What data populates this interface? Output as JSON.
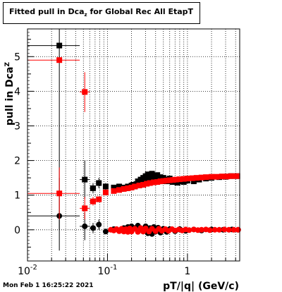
{
  "title": {
    "prefix": "Fitted pull in Dca",
    "subscript": "z",
    "suffix": " for Global Rec All EtapT"
  },
  "footer": "Mon Feb  1 16:25:22 2021",
  "colors": {
    "series_black": "#000000",
    "series_red": "#ff0000",
    "grid": "#000000",
    "frame": "#000000"
  },
  "chart_data": {
    "type": "scatter",
    "xscale": "log",
    "xlim": [
      0.01,
      4.5
    ],
    "ylim": [
      -0.9,
      5.8
    ],
    "grid": true,
    "xlabel": "pT/|q| (GeV/c)",
    "ylabel": {
      "prefix": "pull in Dca",
      "subscript": "Z"
    },
    "xticks": [
      {
        "value": 0.01,
        "base": "10",
        "exp": "-2"
      },
      {
        "value": 0.1,
        "base": "10",
        "exp": "-1"
      },
      {
        "value": 1,
        "base": "1",
        "exp": ""
      }
    ],
    "yticks": [
      "0",
      "1",
      "2",
      "3",
      "4",
      "5"
    ],
    "series": [
      {
        "color": "#000000",
        "points": [
          {
            "x": 0.025,
            "y": 5.32,
            "xlo": 0.01,
            "xhi": 0.045,
            "ylo": 0.0,
            "yhi": 5.8
          },
          {
            "x": 0.025,
            "y": 0.4,
            "xlo": 0.01,
            "xhi": 0.045,
            "ylo": -0.6,
            "yhi": 1.5
          },
          {
            "x": 0.052,
            "y": 1.45,
            "xlo": 0.045,
            "xhi": 0.06,
            "ylo": 0.9,
            "yhi": 2.0
          },
          {
            "x": 0.052,
            "y": 0.1,
            "xlo": 0.045,
            "xhi": 0.06,
            "ylo": -0.3,
            "yhi": 0.5
          },
          {
            "x": 0.066,
            "y": 1.2,
            "xlo": 0.06,
            "xhi": 0.072,
            "ylo": 1.05,
            "yhi": 1.35
          },
          {
            "x": 0.066,
            "y": 0.05,
            "xlo": 0.06,
            "xhi": 0.072,
            "ylo": -0.1,
            "yhi": 0.2
          },
          {
            "x": 0.078,
            "y": 1.35,
            "xlo": 0.072,
            "xhi": 0.084,
            "ylo": 1.2,
            "yhi": 1.5
          },
          {
            "x": 0.078,
            "y": 0.15,
            "xlo": 0.072,
            "xhi": 0.084,
            "ylo": 0.0,
            "yhi": 0.3
          },
          {
            "x": 0.095,
            "y": 1.25,
            "xlo": 0.088,
            "xhi": 0.102,
            "ylo": 1.15,
            "yhi": 1.35
          },
          {
            "x": 0.095,
            "y": -0.05,
            "xlo": 0.088,
            "xhi": 0.102,
            "ylo": -0.12,
            "yhi": 0.02
          },
          {
            "x": 0.12,
            "y": 1.22
          },
          {
            "x": 0.13,
            "y": 1.2
          },
          {
            "x": 0.14,
            "y": 1.25
          },
          {
            "x": 0.15,
            "y": 1.18
          },
          {
            "x": 0.16,
            "y": 1.22
          },
          {
            "x": 0.17,
            "y": 1.2
          },
          {
            "x": 0.18,
            "y": 1.25
          },
          {
            "x": 0.19,
            "y": 1.22
          },
          {
            "x": 0.2,
            "y": 1.28
          },
          {
            "x": 0.21,
            "y": 1.3
          },
          {
            "x": 0.22,
            "y": 1.25
          },
          {
            "x": 0.23,
            "y": 1.32
          },
          {
            "x": 0.24,
            "y": 1.4
          },
          {
            "x": 0.25,
            "y": 1.35
          },
          {
            "x": 0.26,
            "y": 1.45
          },
          {
            "x": 0.27,
            "y": 1.38
          },
          {
            "x": 0.28,
            "y": 1.5
          },
          {
            "x": 0.29,
            "y": 1.42
          },
          {
            "x": 0.3,
            "y": 1.55
          },
          {
            "x": 0.31,
            "y": 1.48
          },
          {
            "x": 0.32,
            "y": 1.6
          },
          {
            "x": 0.33,
            "y": 1.52
          },
          {
            "x": 0.34,
            "y": 1.58
          },
          {
            "x": 0.35,
            "y": 1.5
          },
          {
            "x": 0.36,
            "y": 1.62
          },
          {
            "x": 0.37,
            "y": 1.45
          },
          {
            "x": 0.38,
            "y": 1.55
          },
          {
            "x": 0.4,
            "y": 1.48
          },
          {
            "x": 0.42,
            "y": 1.58
          },
          {
            "x": 0.44,
            "y": 1.42
          },
          {
            "x": 0.46,
            "y": 1.52
          },
          {
            "x": 0.48,
            "y": 1.4
          },
          {
            "x": 0.5,
            "y": 1.5
          },
          {
            "x": 0.53,
            "y": 1.45
          },
          {
            "x": 0.56,
            "y": 1.4
          },
          {
            "x": 0.6,
            "y": 1.48
          },
          {
            "x": 0.65,
            "y": 1.38
          },
          {
            "x": 0.7,
            "y": 1.42
          },
          {
            "x": 0.75,
            "y": 1.36
          },
          {
            "x": 0.8,
            "y": 1.4
          },
          {
            "x": 0.9,
            "y": 1.38
          },
          {
            "x": 1.0,
            "y": 1.42
          },
          {
            "x": 1.2,
            "y": 1.4
          },
          {
            "x": 1.4,
            "y": 1.45
          },
          {
            "x": 1.7,
            "y": 1.48
          },
          {
            "x": 2.0,
            "y": 1.5
          },
          {
            "x": 2.5,
            "y": 1.52
          },
          {
            "x": 3.0,
            "y": 1.53
          },
          {
            "x": 3.5,
            "y": 1.55
          },
          {
            "x": 4.2,
            "y": 1.55
          },
          {
            "x": 0.12,
            "y": 0.02
          },
          {
            "x": 0.14,
            "y": -0.02
          },
          {
            "x": 0.16,
            "y": 0.05
          },
          {
            "x": 0.18,
            "y": 0.08
          },
          {
            "x": 0.2,
            "y": 0.1
          },
          {
            "x": 0.22,
            "y": 0.05
          },
          {
            "x": 0.24,
            "y": 0.12
          },
          {
            "x": 0.26,
            "y": 0.03
          },
          {
            "x": 0.28,
            "y": -0.05
          },
          {
            "x": 0.3,
            "y": 0.1
          },
          {
            "x": 0.32,
            "y": -0.1
          },
          {
            "x": 0.34,
            "y": 0.05
          },
          {
            "x": 0.36,
            "y": -0.12
          },
          {
            "x": 0.38,
            "y": 0.08
          },
          {
            "x": 0.4,
            "y": -0.05
          },
          {
            "x": 0.43,
            "y": 0.06
          },
          {
            "x": 0.46,
            "y": -0.08
          },
          {
            "x": 0.5,
            "y": 0.03
          },
          {
            "x": 0.55,
            "y": -0.06
          },
          {
            "x": 0.6,
            "y": 0.02
          },
          {
            "x": 0.7,
            "y": -0.04
          },
          {
            "x": 0.8,
            "y": 0.02
          },
          {
            "x": 0.95,
            "y": -0.03
          },
          {
            "x": 1.2,
            "y": 0.01
          },
          {
            "x": 1.5,
            "y": -0.02
          },
          {
            "x": 2.0,
            "y": 0.01
          },
          {
            "x": 2.8,
            "y": 0.0
          },
          {
            "x": 3.6,
            "y": 0.01
          },
          {
            "x": 4.3,
            "y": 0.0
          }
        ]
      },
      {
        "color": "#ff0000",
        "points": [
          {
            "x": 0.025,
            "y": 4.9,
            "xlo": 0.01,
            "xhi": 0.045,
            "ylo": 4.85,
            "yhi": 4.95
          },
          {
            "x": 0.025,
            "y": 1.05,
            "xlo": 0.01,
            "xhi": 0.045,
            "ylo": 0.3,
            "yhi": 1.8
          },
          {
            "x": 0.052,
            "y": 3.98,
            "xlo": 0.045,
            "xhi": 0.06,
            "ylo": 3.4,
            "yhi": 4.55
          },
          {
            "x": 0.052,
            "y": 0.62,
            "xlo": 0.045,
            "xhi": 0.06,
            "ylo": 0.3,
            "yhi": 0.95
          },
          {
            "x": 0.066,
            "y": 0.82,
            "xlo": 0.06,
            "xhi": 0.072,
            "ylo": 0.7,
            "yhi": 0.95
          },
          {
            "x": 0.078,
            "y": 0.88,
            "xlo": 0.072,
            "xhi": 0.084,
            "ylo": 0.8,
            "yhi": 0.96
          },
          {
            "x": 0.095,
            "y": 1.08,
            "xlo": 0.088,
            "xhi": 0.102,
            "ylo": 1.02,
            "yhi": 1.14
          },
          {
            "x": 0.12,
            "y": 1.12
          },
          {
            "x": 0.14,
            "y": 1.15
          },
          {
            "x": 0.16,
            "y": 1.18
          },
          {
            "x": 0.18,
            "y": 1.2
          },
          {
            "x": 0.2,
            "y": 1.22
          },
          {
            "x": 0.22,
            "y": 1.25
          },
          {
            "x": 0.25,
            "y": 1.28
          },
          {
            "x": 0.28,
            "y": 1.3
          },
          {
            "x": 0.31,
            "y": 1.33
          },
          {
            "x": 0.34,
            "y": 1.35
          },
          {
            "x": 0.38,
            "y": 1.37
          },
          {
            "x": 0.42,
            "y": 1.38
          },
          {
            "x": 0.46,
            "y": 1.4
          },
          {
            "x": 0.5,
            "y": 1.41
          },
          {
            "x": 0.55,
            "y": 1.42
          },
          {
            "x": 0.6,
            "y": 1.43
          },
          {
            "x": 0.66,
            "y": 1.44
          },
          {
            "x": 0.72,
            "y": 1.45
          },
          {
            "x": 0.8,
            "y": 1.46
          },
          {
            "x": 0.9,
            "y": 1.47
          },
          {
            "x": 1.0,
            "y": 1.48
          },
          {
            "x": 1.15,
            "y": 1.49
          },
          {
            "x": 1.3,
            "y": 1.5
          },
          {
            "x": 1.5,
            "y": 1.51
          },
          {
            "x": 1.7,
            "y": 1.52
          },
          {
            "x": 2.0,
            "y": 1.53
          },
          {
            "x": 2.3,
            "y": 1.53
          },
          {
            "x": 2.7,
            "y": 1.54
          },
          {
            "x": 3.1,
            "y": 1.54
          },
          {
            "x": 3.6,
            "y": 1.55
          },
          {
            "x": 4.2,
            "y": 1.55
          },
          {
            "x": 0.11,
            "y": 0.0
          },
          {
            "x": 0.12,
            "y": -0.02
          },
          {
            "x": 0.13,
            "y": 0.02
          },
          {
            "x": 0.14,
            "y": -0.04
          },
          {
            "x": 0.15,
            "y": 0.03
          },
          {
            "x": 0.16,
            "y": -0.05
          },
          {
            "x": 0.17,
            "y": 0.02
          },
          {
            "x": 0.18,
            "y": -0.06
          },
          {
            "x": 0.19,
            "y": 0.04
          },
          {
            "x": 0.2,
            "y": -0.05
          },
          {
            "x": 0.22,
            "y": 0.03
          },
          {
            "x": 0.24,
            "y": -0.06
          },
          {
            "x": 0.26,
            "y": 0.05
          },
          {
            "x": 0.28,
            "y": -0.05
          },
          {
            "x": 0.3,
            "y": 0.04
          },
          {
            "x": 0.33,
            "y": -0.05
          },
          {
            "x": 0.36,
            "y": 0.03
          },
          {
            "x": 0.4,
            "y": -0.04
          },
          {
            "x": 0.44,
            "y": 0.03
          },
          {
            "x": 0.48,
            "y": -0.03
          },
          {
            "x": 0.53,
            "y": 0.02
          },
          {
            "x": 0.58,
            "y": -0.03
          },
          {
            "x": 0.64,
            "y": 0.02
          },
          {
            "x": 0.7,
            "y": -0.02
          },
          {
            "x": 0.78,
            "y": 0.01
          },
          {
            "x": 0.86,
            "y": -0.02
          },
          {
            "x": 0.95,
            "y": 0.01
          },
          {
            "x": 1.05,
            "y": -0.01
          },
          {
            "x": 1.2,
            "y": 0.01
          },
          {
            "x": 1.35,
            "y": -0.01
          },
          {
            "x": 1.5,
            "y": 0.0
          },
          {
            "x": 1.7,
            "y": 0.01
          },
          {
            "x": 1.9,
            "y": -0.01
          },
          {
            "x": 2.2,
            "y": 0.0
          },
          {
            "x": 2.5,
            "y": 0.0
          },
          {
            "x": 2.9,
            "y": 0.01
          },
          {
            "x": 3.3,
            "y": 0.0
          },
          {
            "x": 3.8,
            "y": 0.0
          },
          {
            "x": 4.3,
            "y": 0.0
          }
        ]
      }
    ]
  }
}
